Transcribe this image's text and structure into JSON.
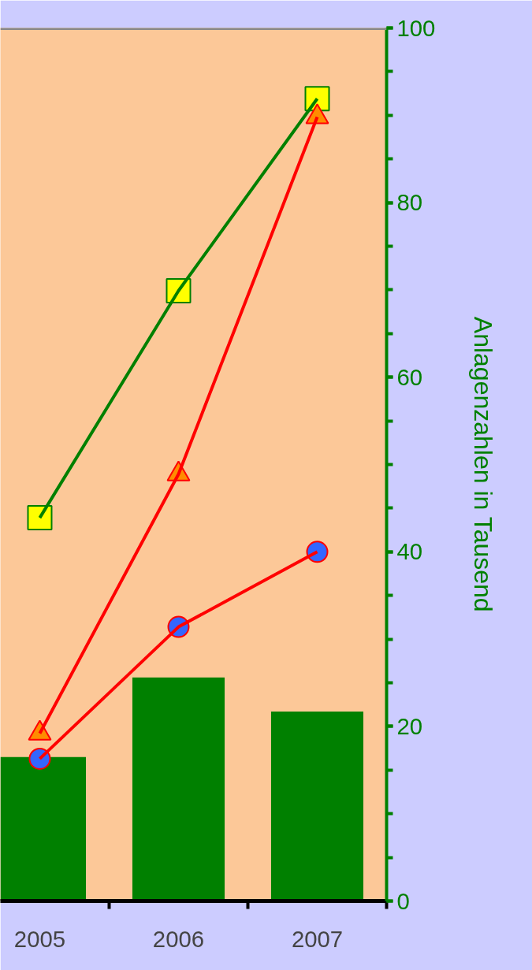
{
  "chart_data": {
    "type": "bar",
    "categories": [
      "2005",
      "2006",
      "2007"
    ],
    "ylabel": "Anlagenzahlen in Tausend",
    "ylim": [
      0,
      100
    ],
    "yticks": [
      0,
      20,
      40,
      60,
      80,
      100
    ],
    "grid": false,
    "series": [
      {
        "color": "#008000",
        "values": [
          16.5,
          25.6,
          21.7
        ]
      },
      {
        "type": "line",
        "color": "#008000",
        "marker": "square",
        "values": [
          43.9,
          69.9,
          91.9
        ]
      },
      {
        "type": "line",
        "color": "#ff0000",
        "marker": "triangle",
        "values": [
          19.2,
          48.9,
          89.8
        ]
      },
      {
        "type": "line",
        "color": "#ff0000",
        "marker": "circle",
        "values": [
          16.3,
          31.4,
          40.0
        ]
      }
    ]
  }
}
